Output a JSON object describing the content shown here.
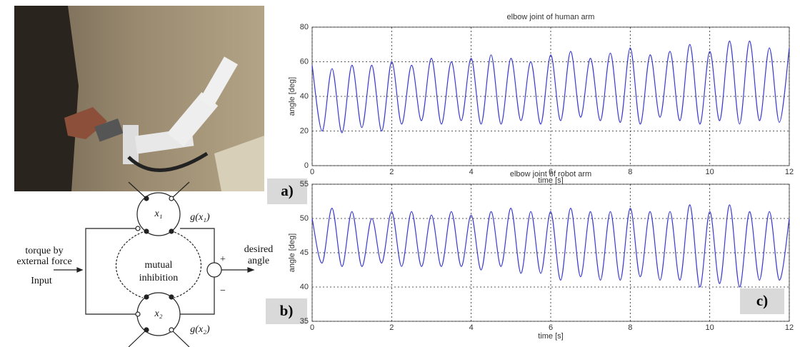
{
  "figure": {
    "panels": [
      "a)",
      "b)",
      "c)"
    ]
  },
  "diagram": {
    "input_lines": [
      "torque by",
      "external force"
    ],
    "input": "Input",
    "inhibition": [
      "mutual",
      "inhibition"
    ],
    "node1": "x₁",
    "node2": "x₂",
    "out1": "g(x₁)",
    "out2": "g(x₂)",
    "plus": "+",
    "minus": "−",
    "output": [
      "desired",
      "angle"
    ]
  },
  "chart_data": [
    {
      "type": "line",
      "title": "elbow joint of human arm",
      "xlabel": "time [s]",
      "ylabel": "angle [deg]",
      "color": "#3a3ad0",
      "x": [
        0,
        0.25,
        0.5,
        0.75,
        1,
        1.25,
        1.5,
        1.75,
        2,
        2.25,
        2.5,
        2.75,
        3,
        3.25,
        3.5,
        3.75,
        4,
        4.25,
        4.5,
        4.75,
        5,
        5.25,
        5.5,
        5.75,
        6,
        6.25,
        6.5,
        6.75,
        7,
        7.25,
        7.5,
        7.75,
        8,
        8.25,
        8.5,
        8.75,
        9,
        9.25,
        9.5,
        9.75,
        10,
        10.25,
        10.5,
        10.75,
        11,
        11.25,
        11.5,
        11.75,
        12
      ],
      "values": [
        58,
        20,
        56,
        19,
        58,
        22,
        58,
        20,
        60,
        24,
        58,
        26,
        62,
        24,
        60,
        26,
        62,
        24,
        64,
        24,
        62,
        26,
        60,
        24,
        64,
        26,
        66,
        28,
        62,
        26,
        65,
        25,
        68,
        24,
        64,
        28,
        66,
        26,
        70,
        24,
        66,
        26,
        72,
        24,
        72,
        26,
        68,
        25,
        68
      ],
      "xlim": [
        0,
        12
      ],
      "xticks": [
        0,
        2,
        4,
        6,
        8,
        10,
        12
      ],
      "ylim": [
        0,
        80
      ],
      "yticks": [
        0,
        20,
        40,
        60,
        80
      ],
      "grid": true
    },
    {
      "type": "line",
      "title": "elbow joint of robot arm",
      "xlabel": "time [s]",
      "ylabel": "angle [deg]",
      "color": "#3a3ad0",
      "x": [
        0,
        0.25,
        0.5,
        0.75,
        1,
        1.25,
        1.5,
        1.75,
        2,
        2.25,
        2.5,
        2.75,
        3,
        3.25,
        3.5,
        3.75,
        4,
        4.25,
        4.5,
        4.75,
        5,
        5.25,
        5.5,
        5.75,
        6,
        6.25,
        6.5,
        6.75,
        7,
        7.25,
        7.5,
        7.75,
        8,
        8.25,
        8.5,
        8.75,
        9,
        9.25,
        9.5,
        9.75,
        10,
        10.25,
        10.5,
        10.75,
        11,
        11.25,
        11.5,
        11.75,
        12
      ],
      "values": [
        50,
        43.5,
        51.5,
        43,
        51,
        43,
        50,
        43.5,
        51,
        43,
        51,
        43,
        50.5,
        43,
        51,
        43,
        50.5,
        42.5,
        51,
        43,
        51.5,
        42,
        51,
        42,
        51,
        41,
        51.5,
        41.5,
        51,
        41,
        51,
        41,
        51.5,
        41.5,
        51,
        41,
        51,
        41,
        52,
        40,
        51,
        40.5,
        52,
        40,
        51,
        41,
        51,
        41,
        50
      ],
      "xlim": [
        0,
        12
      ],
      "xticks": [
        0,
        2,
        4,
        6,
        8,
        10,
        12
      ],
      "ylim": [
        35,
        55
      ],
      "yticks": [
        35,
        40,
        45,
        50,
        55
      ],
      "grid": true
    }
  ]
}
